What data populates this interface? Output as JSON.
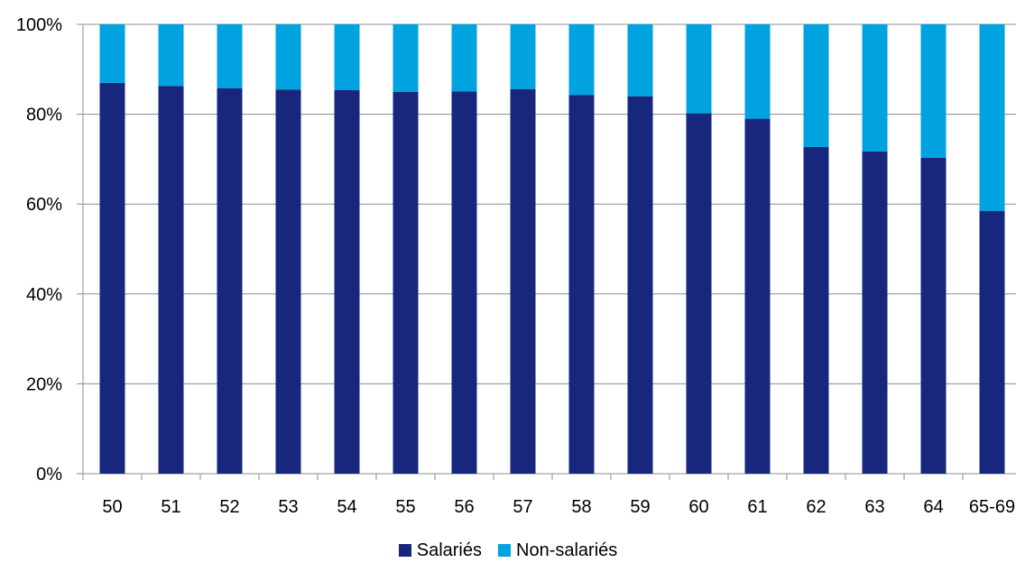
{
  "chart_data": {
    "type": "bar",
    "stacked": true,
    "categories": [
      "50",
      "51",
      "52",
      "53",
      "54",
      "55",
      "56",
      "57",
      "58",
      "59",
      "60",
      "61",
      "62",
      "63",
      "64",
      "65-69"
    ],
    "series": [
      {
        "name": "Salariés",
        "color": "#16277d",
        "values": [
          87,
          86.3,
          85.8,
          85.5,
          85.4,
          85,
          85.1,
          85.6,
          84.3,
          84,
          80.2,
          79,
          72.7,
          71.7,
          70.3,
          58.5
        ]
      },
      {
        "name": "Non-salariés",
        "color": "#00a2e0",
        "values": [
          13,
          13.7,
          14.2,
          14.5,
          14.6,
          15,
          14.9,
          14.4,
          15.7,
          16,
          19.8,
          21,
          27.3,
          28.3,
          29.7,
          41.5
        ]
      }
    ],
    "ylim": [
      0,
      100
    ],
    "yticks": [
      "0%",
      "20%",
      "40%",
      "60%",
      "80%",
      "100%"
    ],
    "ytick_values": [
      0,
      20,
      40,
      60,
      80,
      100
    ],
    "grid": true,
    "legend_position": "bottom",
    "title": "",
    "xlabel": "",
    "ylabel": ""
  }
}
